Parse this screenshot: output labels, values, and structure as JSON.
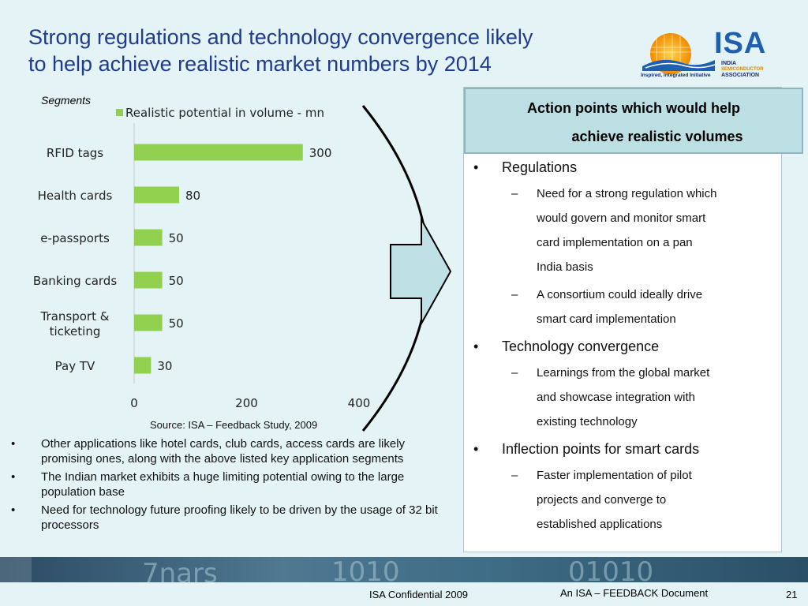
{
  "title": {
    "line1": "Strong regulations and technology convergence likely",
    "line2": "to help achieve realistic market numbers by 2014"
  },
  "logo": {
    "name": "ISA",
    "india": "INDIA",
    "semiconductor": "SEMICONDUCTOR",
    "association": "ASSOCIATION",
    "tagline": "Inspired, Integrated Initiative"
  },
  "segments_label": "Segments",
  "chart_data": {
    "type": "bar",
    "orientation": "horizontal",
    "legend_position": "top",
    "categories": [
      "RFID tags",
      "Health cards",
      "e-passports",
      "Banking cards",
      "Transport & ticketing",
      "Pay TV"
    ],
    "category_lines": [
      [
        "RFID tags"
      ],
      [
        "Health cards"
      ],
      [
        "e-passports"
      ],
      [
        "Banking cards"
      ],
      [
        "Transport &",
        "ticketing"
      ],
      [
        "Pay TV"
      ]
    ],
    "series": [
      {
        "name": "Realistic potential in volume - mn",
        "values": [
          300,
          80,
          50,
          50,
          50,
          30
        ]
      }
    ],
    "value_labels": [
      "300",
      "80",
      "50",
      "50",
      "50",
      "30"
    ],
    "xticks": [
      "0",
      "200",
      "400"
    ],
    "xlim": [
      0,
      400
    ],
    "grid": false,
    "colors": {
      "bar": "#92d050"
    }
  },
  "source": "Source: ISA – Feedback Study, 2009",
  "left_bullets": [
    "Other applications like hotel cards, club cards, access cards are likely promising ones, along with the above listed key application segments",
    "The Indian market exhibits a huge limiting potential owing to the large population base",
    "Need for technology future proofing likely to be driven by the usage of 32 bit processors"
  ],
  "panel": {
    "heading_line1": "Action points which would help",
    "heading_line2": "achieve realistic volumes",
    "sections": [
      {
        "label": "Regulations",
        "subs": [
          [
            "Need for a strong regulation which",
            "would govern and monitor smart",
            "card implementation on a pan",
            "India basis"
          ],
          [
            "A consortium could ideally drive",
            "smart card implementation"
          ]
        ]
      },
      {
        "label": "Technology convergence",
        "subs": [
          [
            "Learnings from the global market",
            "and showcase integration with",
            "existing technology"
          ]
        ]
      },
      {
        "label": "Inflection points for smart cards",
        "subs": [
          [
            "Faster implementation of pilot",
            "projects and converge to",
            "established applications"
          ]
        ]
      }
    ]
  },
  "footer": {
    "confidential": "ISA Confidential 2009",
    "document": "An ISA – FEEDBACK Document",
    "page": "21"
  },
  "colors": {
    "background": "#e4f3f5",
    "title": "#1f3b8f",
    "panel_head": "#bcdfe3",
    "arrow_fill": "#bfe0e4"
  }
}
